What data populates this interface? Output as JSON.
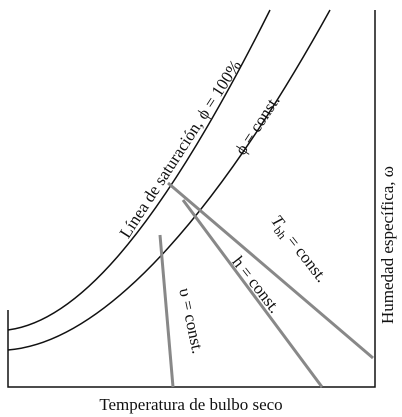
{
  "labels": {
    "saturation": "Línea de saturación, ϕ = 100%",
    "phi_const": "ϕ = const.",
    "tbh": {
      "symbol": "T",
      "sub": "bh",
      "rest": " = const."
    },
    "h_const": "h = const.",
    "v_const": "υ = const.",
    "x_axis": "Temperatura de bulbo seco",
    "y_axis": "Humedad específica, ω"
  }
}
